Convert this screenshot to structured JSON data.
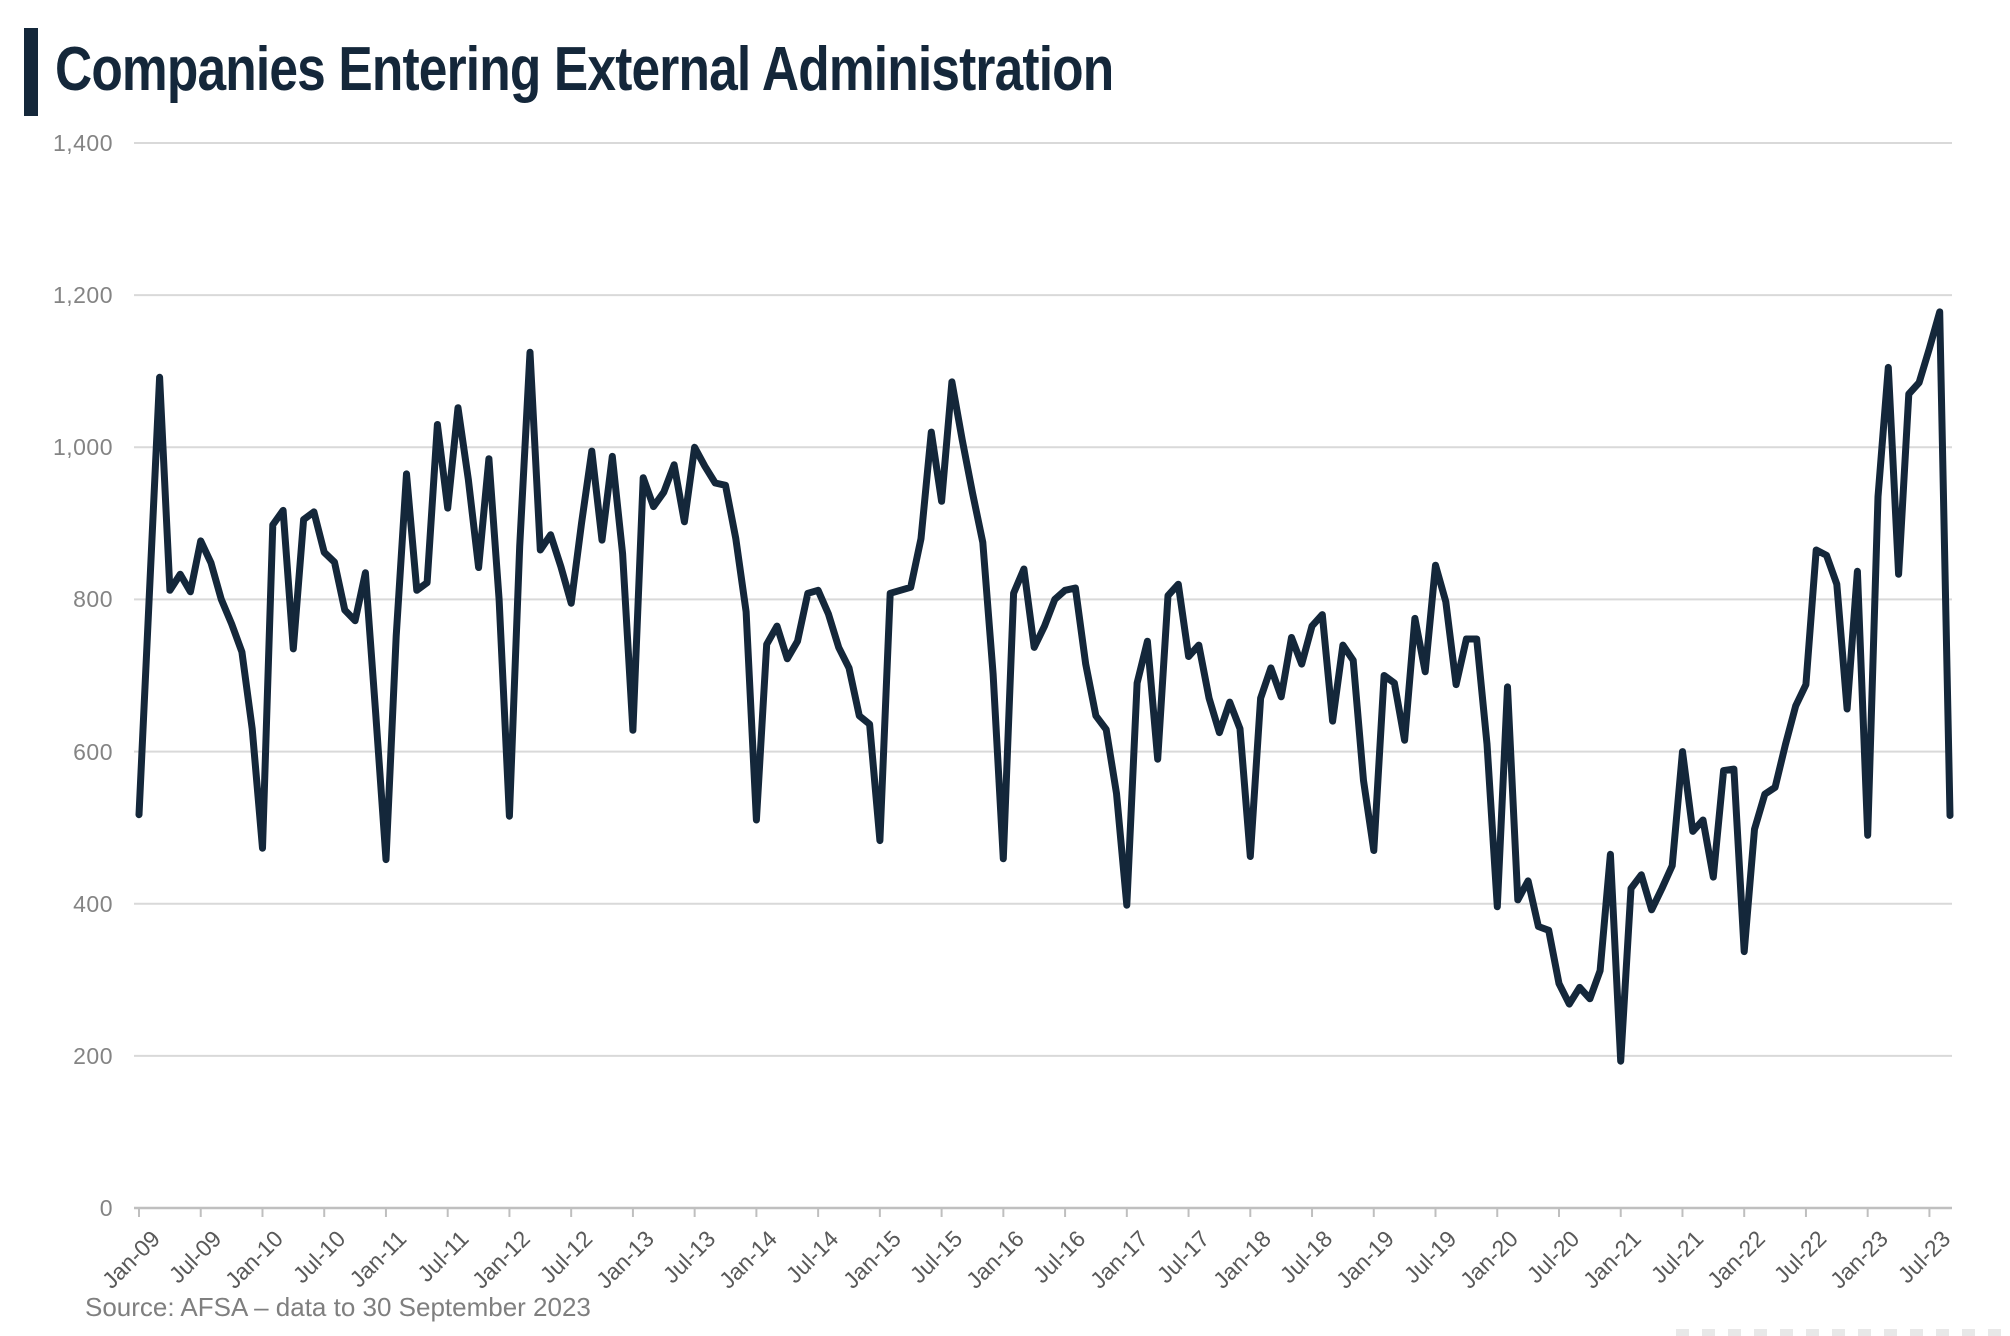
{
  "title": "Companies Entering External Administration",
  "source": "Source: AFSA – data to 30 September 2023",
  "colors": {
    "accent_navy": "#14273A",
    "line": "#14273A",
    "gridline": "#D9D9D9",
    "axis": "#BFBFBF",
    "y_label": "#848484",
    "x_label": "#595959",
    "source_text": "#7F7F7F",
    "background": "#FFFFFF"
  },
  "chart_data": {
    "type": "line",
    "title": "Companies Entering External Administration",
    "frequency": "monthly",
    "x_start": "Jan-09",
    "x_end": "Sep-23",
    "xlabel": "",
    "ylabel": "",
    "ylim": [
      0,
      1400
    ],
    "grid": "horizontal",
    "legend": "none",
    "y_tick_labels": [
      "1,400",
      "1,200",
      "1,000",
      "800",
      "600",
      "400",
      "200",
      "0"
    ],
    "y_tick_values": [
      1400,
      1200,
      1000,
      800,
      600,
      400,
      200,
      0
    ],
    "x_tick_labels": [
      "Jan-09",
      "Jul-09",
      "Jan-10",
      "Jul-10",
      "Jan-11",
      "Jul-11",
      "Jan-12",
      "Jul-12",
      "Jan-13",
      "Jul-13",
      "Jan-14",
      "Jul-14",
      "Jan-15",
      "Jul-15",
      "Jan-16",
      "Jul-16",
      "Jan-17",
      "Jul-17",
      "Jan-18",
      "Jul-18",
      "Jan-19",
      "Jul-19",
      "Jan-20",
      "Jul-20",
      "Jan-21",
      "Jul-21",
      "Jan-22",
      "Jul-22",
      "Jan-23",
      "Jul-23"
    ],
    "x_tick_every_n_months": 6,
    "values": [
      517,
      805,
      1092,
      812,
      833,
      810,
      877,
      848,
      800,
      768,
      731,
      630,
      473,
      898,
      917,
      735,
      905,
      915,
      862,
      849,
      786,
      772,
      835,
      650,
      458,
      752,
      965,
      812,
      822,
      1030,
      920,
      1052,
      958,
      842,
      985,
      800,
      515,
      870,
      1125,
      865,
      885,
      843,
      795,
      900,
      995,
      878,
      988,
      860,
      628,
      960,
      922,
      941,
      977,
      902,
      1000,
      975,
      953,
      950,
      880,
      784,
      510,
      741,
      765,
      722,
      745,
      808,
      812,
      781,
      737,
      710,
      647,
      636,
      483,
      808,
      812,
      816,
      880,
      1020,
      929,
      1086,
      1010,
      940,
      875,
      702,
      459,
      808,
      840,
      737,
      765,
      800,
      812,
      815,
      715,
      647,
      629,
      545,
      398,
      690,
      745,
      590,
      805,
      820,
      725,
      740,
      670,
      625,
      665,
      630,
      462,
      670,
      710,
      672,
      750,
      715,
      765,
      780,
      640,
      740,
      720,
      562,
      470,
      700,
      690,
      615,
      775,
      705,
      845,
      797,
      688,
      748,
      748,
      610,
      396,
      685,
      405,
      430,
      370,
      365,
      295,
      268,
      290,
      275,
      312,
      465,
      193,
      420,
      438,
      392,
      420,
      450,
      600,
      495,
      510,
      435,
      575,
      577,
      337,
      498,
      544,
      553,
      609,
      660,
      688,
      865,
      858,
      820,
      656,
      837,
      490,
      935,
      1105,
      833,
      1070,
      1085,
      1130,
      1178,
      516
    ]
  }
}
